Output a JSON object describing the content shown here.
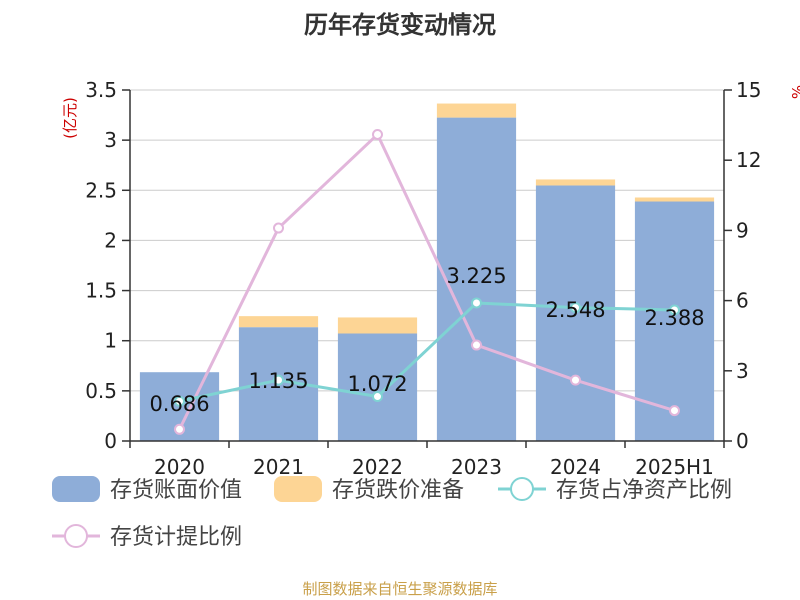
{
  "chart_data": {
    "type": "bar",
    "title": "历年存货变动情况",
    "left_axis_unit": "(亿元)",
    "right_axis_unit": "%",
    "categories": [
      "2020",
      "2021",
      "2022",
      "2023",
      "2024",
      "2025H1"
    ],
    "left_ylim": [
      0,
      3.5
    ],
    "left_yticks": [
      "0",
      "0.5",
      "1",
      "1.5",
      "2",
      "2.5",
      "3",
      "3.5"
    ],
    "right_ylim": [
      0,
      15
    ],
    "right_yticks": [
      "0",
      "3",
      "6",
      "9",
      "12",
      "15"
    ],
    "grid": true,
    "series": [
      {
        "name": "存货账面价值",
        "kind": "bar",
        "axis": "left",
        "color": "#8eadd8",
        "values": [
          0.686,
          1.135,
          1.072,
          3.225,
          2.548,
          2.388
        ],
        "labels": [
          "0.686",
          "1.135",
          "1.072",
          "3.225",
          "2.548",
          "2.388"
        ]
      },
      {
        "name": "存货跌价准备",
        "kind": "bar-stack",
        "axis": "left",
        "color": "#fdd595",
        "values": [
          0.0,
          0.11,
          0.16,
          0.14,
          0.06,
          0.04
        ]
      },
      {
        "name": "存货占净资产比例",
        "kind": "line",
        "axis": "right",
        "color": "#7fd3d3",
        "values": [
          1.7,
          2.6,
          1.9,
          5.9,
          5.7,
          5.6
        ]
      },
      {
        "name": "存货计提比例",
        "kind": "line",
        "axis": "right",
        "color": "#e2b6db",
        "values": [
          0.5,
          9.1,
          13.1,
          4.1,
          2.6,
          1.3
        ]
      }
    ],
    "legend_position": "bottom",
    "footer": "制图数据来自恒生聚源数据库"
  }
}
